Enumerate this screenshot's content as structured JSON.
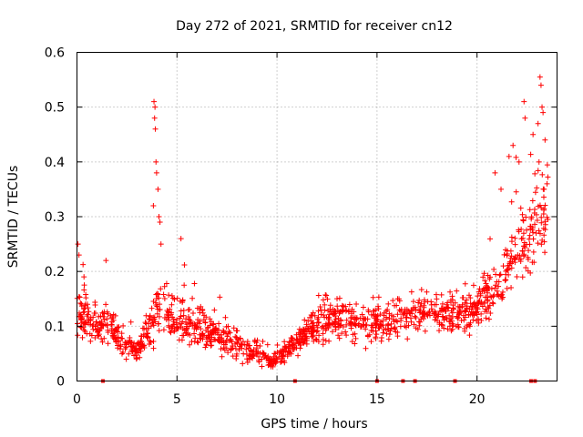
{
  "chart_data": {
    "type": "scatter",
    "title": "Day 272 of 2021, SRMTID for receiver cn12",
    "xlabel": "GPS time / hours",
    "ylabel": "SRMTID / TECUs",
    "xlim": [
      0,
      24
    ],
    "ylim": [
      0,
      0.6
    ],
    "xticks": [
      0,
      5,
      10,
      15,
      20
    ],
    "yticks": [
      0,
      0.1,
      0.2,
      0.3,
      0.4,
      0.5,
      0.6
    ],
    "xtick_labels": [
      "0",
      "5",
      "10",
      "15",
      "20"
    ],
    "ytick_labels": [
      "0",
      "0.1",
      "0.2",
      "0.3",
      "0.4",
      "0.5",
      "0.6"
    ],
    "grid": true,
    "marker": "+",
    "color": "#ff0000",
    "trend": [
      {
        "x": 0.0,
        "y": 0.13,
        "s": 0.045
      },
      {
        "x": 0.5,
        "y": 0.12,
        "s": 0.04
      },
      {
        "x": 1.0,
        "y": 0.1,
        "s": 0.035
      },
      {
        "x": 1.5,
        "y": 0.11,
        "s": 0.04
      },
      {
        "x": 2.0,
        "y": 0.08,
        "s": 0.025
      },
      {
        "x": 2.5,
        "y": 0.065,
        "s": 0.02
      },
      {
        "x": 3.0,
        "y": 0.055,
        "s": 0.018
      },
      {
        "x": 3.5,
        "y": 0.09,
        "s": 0.035
      },
      {
        "x": 3.9,
        "y": 0.13,
        "s": 0.06
      },
      {
        "x": 4.5,
        "y": 0.13,
        "s": 0.045
      },
      {
        "x": 5.0,
        "y": 0.11,
        "s": 0.04
      },
      {
        "x": 6.0,
        "y": 0.1,
        "s": 0.035
      },
      {
        "x": 7.0,
        "y": 0.085,
        "s": 0.03
      },
      {
        "x": 8.0,
        "y": 0.065,
        "s": 0.025
      },
      {
        "x": 9.0,
        "y": 0.05,
        "s": 0.018
      },
      {
        "x": 9.7,
        "y": 0.035,
        "s": 0.012
      },
      {
        "x": 10.5,
        "y": 0.055,
        "s": 0.018
      },
      {
        "x": 11.5,
        "y": 0.09,
        "s": 0.03
      },
      {
        "x": 12.5,
        "y": 0.11,
        "s": 0.035
      },
      {
        "x": 13.5,
        "y": 0.115,
        "s": 0.035
      },
      {
        "x": 14.5,
        "y": 0.105,
        "s": 0.03
      },
      {
        "x": 15.5,
        "y": 0.11,
        "s": 0.035
      },
      {
        "x": 16.5,
        "y": 0.115,
        "s": 0.035
      },
      {
        "x": 17.5,
        "y": 0.13,
        "s": 0.035
      },
      {
        "x": 18.5,
        "y": 0.125,
        "s": 0.035
      },
      {
        "x": 19.5,
        "y": 0.12,
        "s": 0.035
      },
      {
        "x": 20.5,
        "y": 0.15,
        "s": 0.045
      },
      {
        "x": 21.5,
        "y": 0.21,
        "s": 0.06
      },
      {
        "x": 22.5,
        "y": 0.26,
        "s": 0.07
      },
      {
        "x": 23.3,
        "y": 0.3,
        "s": 0.09
      }
    ],
    "peaks": [
      {
        "x": 3.85,
        "y": 0.51
      },
      {
        "x": 3.9,
        "y": 0.5
      },
      {
        "x": 3.88,
        "y": 0.48
      },
      {
        "x": 3.92,
        "y": 0.46
      },
      {
        "x": 3.95,
        "y": 0.4
      },
      {
        "x": 3.98,
        "y": 0.38
      },
      {
        "x": 3.82,
        "y": 0.32
      },
      {
        "x": 4.05,
        "y": 0.35
      },
      {
        "x": 4.1,
        "y": 0.3
      },
      {
        "x": 4.15,
        "y": 0.29
      },
      {
        "x": 4.2,
        "y": 0.25
      },
      {
        "x": 0.05,
        "y": 0.25
      },
      {
        "x": 0.1,
        "y": 0.23
      },
      {
        "x": 0.35,
        "y": 0.19
      },
      {
        "x": 1.45,
        "y": 0.22
      },
      {
        "x": 5.2,
        "y": 0.26
      },
      {
        "x": 23.15,
        "y": 0.555
      },
      {
        "x": 23.2,
        "y": 0.54
      },
      {
        "x": 23.25,
        "y": 0.5
      },
      {
        "x": 23.3,
        "y": 0.49
      },
      {
        "x": 22.35,
        "y": 0.51
      },
      {
        "x": 22.4,
        "y": 0.48
      },
      {
        "x": 23.05,
        "y": 0.47
      },
      {
        "x": 21.8,
        "y": 0.43
      },
      {
        "x": 22.8,
        "y": 0.45
      },
      {
        "x": 23.4,
        "y": 0.44
      },
      {
        "x": 21.6,
        "y": 0.41
      },
      {
        "x": 22.1,
        "y": 0.4
      },
      {
        "x": 23.1,
        "y": 0.4
      },
      {
        "x": 20.9,
        "y": 0.38
      },
      {
        "x": 23.5,
        "y": 0.36
      },
      {
        "x": 21.2,
        "y": 0.35
      },
      {
        "x": 23.35,
        "y": 0.35
      }
    ],
    "gap_markers_x": [
      1.3,
      10.9,
      15.0,
      16.3,
      16.9,
      18.9,
      22.7,
      22.9
    ]
  }
}
